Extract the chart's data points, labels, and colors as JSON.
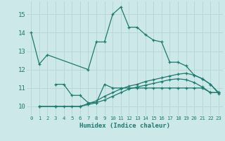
{
  "xlabel": "Humidex (Indice chaleur)",
  "bg_color": "#cce8e8",
  "line_color": "#1e7a6e",
  "grid_color": "#b8d8d8",
  "xlim": [
    -0.5,
    23.5
  ],
  "ylim": [
    9.5,
    15.7
  ],
  "xticks": [
    0,
    1,
    2,
    3,
    4,
    5,
    6,
    7,
    8,
    9,
    10,
    11,
    12,
    13,
    14,
    15,
    16,
    17,
    18,
    19,
    20,
    21,
    22,
    23
  ],
  "yticks": [
    10,
    11,
    12,
    13,
    14,
    15
  ],
  "series": [
    {
      "x": [
        0,
        1,
        2,
        7,
        8,
        9,
        10,
        11,
        12,
        13,
        14,
        15,
        16,
        17,
        18,
        19,
        20,
        21,
        22,
        23
      ],
      "y": [
        14.0,
        12.3,
        12.8,
        12.0,
        13.5,
        13.5,
        15.0,
        15.4,
        14.3,
        14.3,
        13.9,
        13.6,
        13.5,
        12.4,
        12.4,
        12.2,
        11.7,
        11.5,
        11.2,
        10.7
      ]
    },
    {
      "x": [
        3,
        4,
        5,
        6,
        7,
        8,
        9,
        10,
        11,
        12,
        13,
        14,
        15,
        16,
        17,
        18,
        19,
        20,
        21,
        22,
        23
      ],
      "y": [
        11.2,
        11.2,
        10.6,
        10.6,
        10.2,
        10.2,
        11.2,
        11.0,
        11.0,
        11.0,
        11.0,
        11.0,
        11.0,
        11.0,
        11.0,
        11.0,
        11.0,
        11.0,
        11.0,
        10.75,
        10.75
      ]
    },
    {
      "x": [
        1,
        3,
        6,
        7,
        8,
        9,
        10,
        11,
        12,
        13,
        14,
        15,
        16,
        17,
        18,
        19,
        20,
        21,
        22,
        23
      ],
      "y": [
        10.0,
        10.0,
        10.0,
        10.15,
        10.3,
        10.55,
        10.75,
        10.95,
        11.1,
        11.2,
        11.35,
        11.45,
        11.55,
        11.65,
        11.75,
        11.8,
        11.7,
        11.5,
        11.2,
        10.75
      ]
    },
    {
      "x": [
        1,
        3,
        4,
        5,
        6,
        7,
        8,
        9,
        10,
        11,
        12,
        13,
        14,
        15,
        16,
        17,
        18,
        19,
        20,
        21,
        22,
        23
      ],
      "y": [
        10.0,
        10.0,
        10.0,
        10.0,
        10.0,
        10.1,
        10.2,
        10.35,
        10.55,
        10.75,
        10.95,
        11.05,
        11.15,
        11.25,
        11.35,
        11.45,
        11.5,
        11.45,
        11.3,
        11.05,
        10.75,
        10.75
      ]
    }
  ]
}
